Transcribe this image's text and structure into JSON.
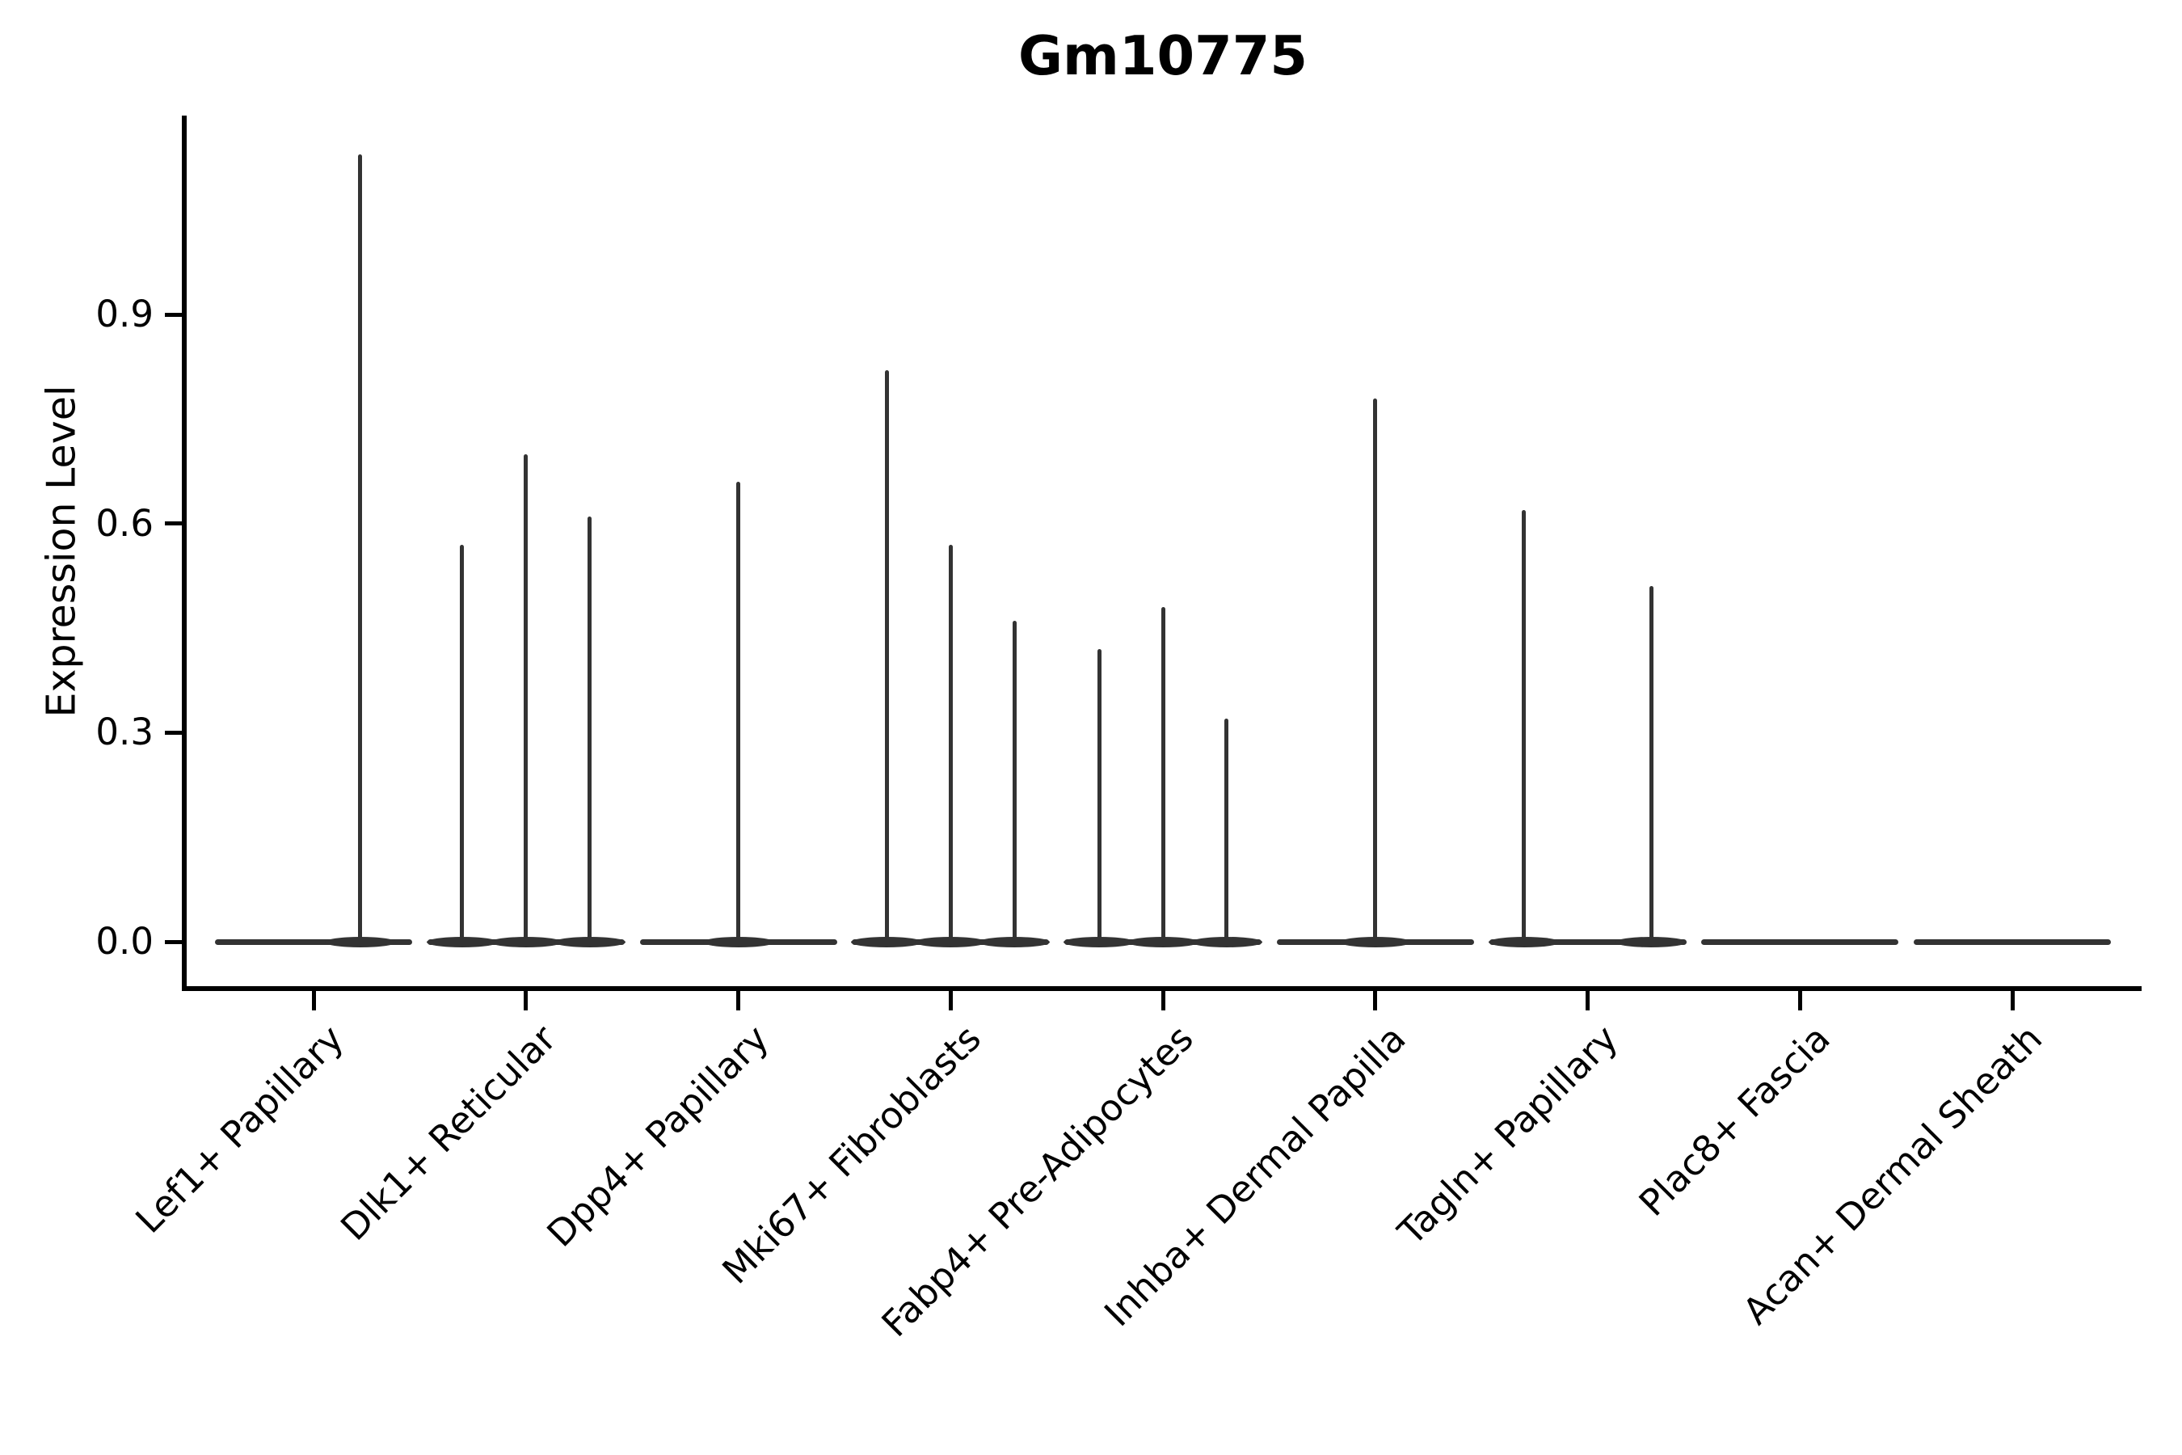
{
  "title": "Gm10775",
  "y_axis": {
    "label": "Expression Level",
    "tick_labels": [
      "0.0",
      "0.3",
      "0.6",
      "0.9"
    ]
  },
  "x_axis": {
    "categories": [
      "Lef1+ Papillary",
      "Dlk1+ Reticular",
      "Dpp4+ Papillary",
      "Mki67+ Fibroblasts",
      "Fabp4+ Pre-Adipocytes",
      "Inhba+ Dermal Papilla",
      "Tagln+ Papillary",
      "Plac8+ Fascia",
      "Acan+ Dermal Sheath"
    ]
  },
  "colors": {
    "violin": "#333333",
    "axis": "#000000",
    "text": "#000000",
    "background": "#ffffff"
  },
  "chart_data": {
    "type": "violin",
    "title": "Gm10775",
    "xlabel": "",
    "ylabel": "Expression Level",
    "yticks": [
      0.0,
      0.3,
      0.6,
      0.9
    ],
    "ylim": [
      -0.064,
      1.183
    ],
    "grid": false,
    "legend": "none",
    "description": "Sparse expression violins: each category shows a flat density base at 0 with thin spikes reaching the maximum expression of rare expressing sub-violins.",
    "categories": [
      "Lef1+ Papillary",
      "Dlk1+ Reticular",
      "Dpp4+ Papillary",
      "Mki67+ Fibroblasts",
      "Fabp4+ Pre-Adipocytes",
      "Inhba+ Dermal Papilla",
      "Tagln+ Papillary",
      "Plac8+ Fascia",
      "Acan+ Dermal Sheath"
    ],
    "violins": [
      {
        "category": "Lef1+ Papillary",
        "baseline": 0.0,
        "spikes": [
          {
            "offset": 0.22,
            "max": 1.13
          }
        ]
      },
      {
        "category": "Dlk1+ Reticular",
        "baseline": 0.0,
        "spikes": [
          {
            "offset": -0.3,
            "max": 0.57
          },
          {
            "offset": 0.0,
            "max": 0.7
          },
          {
            "offset": 0.3,
            "max": 0.61
          }
        ]
      },
      {
        "category": "Dpp4+ Papillary",
        "baseline": 0.0,
        "spikes": [
          {
            "offset": 0.0,
            "max": 0.66
          }
        ]
      },
      {
        "category": "Mki67+ Fibroblasts",
        "baseline": 0.0,
        "spikes": [
          {
            "offset": -0.3,
            "max": 0.82
          },
          {
            "offset": 0.0,
            "max": 0.57
          },
          {
            "offset": 0.3,
            "max": 0.46
          }
        ]
      },
      {
        "category": "Fabp4+ Pre-Adipocytes",
        "baseline": 0.0,
        "spikes": [
          {
            "offset": -0.3,
            "max": 0.42
          },
          {
            "offset": 0.0,
            "max": 0.48
          },
          {
            "offset": 0.3,
            "max": 0.32
          }
        ]
      },
      {
        "category": "Inhba+ Dermal Papilla",
        "baseline": 0.0,
        "spikes": [
          {
            "offset": 0.0,
            "max": 0.78
          }
        ]
      },
      {
        "category": "Tagln+ Papillary",
        "baseline": 0.0,
        "spikes": [
          {
            "offset": -0.3,
            "max": 0.62
          },
          {
            "offset": 0.3,
            "max": 0.51
          }
        ]
      },
      {
        "category": "Plac8+ Fascia",
        "baseline": 0.0,
        "spikes": []
      },
      {
        "category": "Acan+ Dermal Sheath",
        "baseline": 0.0,
        "spikes": []
      }
    ]
  }
}
